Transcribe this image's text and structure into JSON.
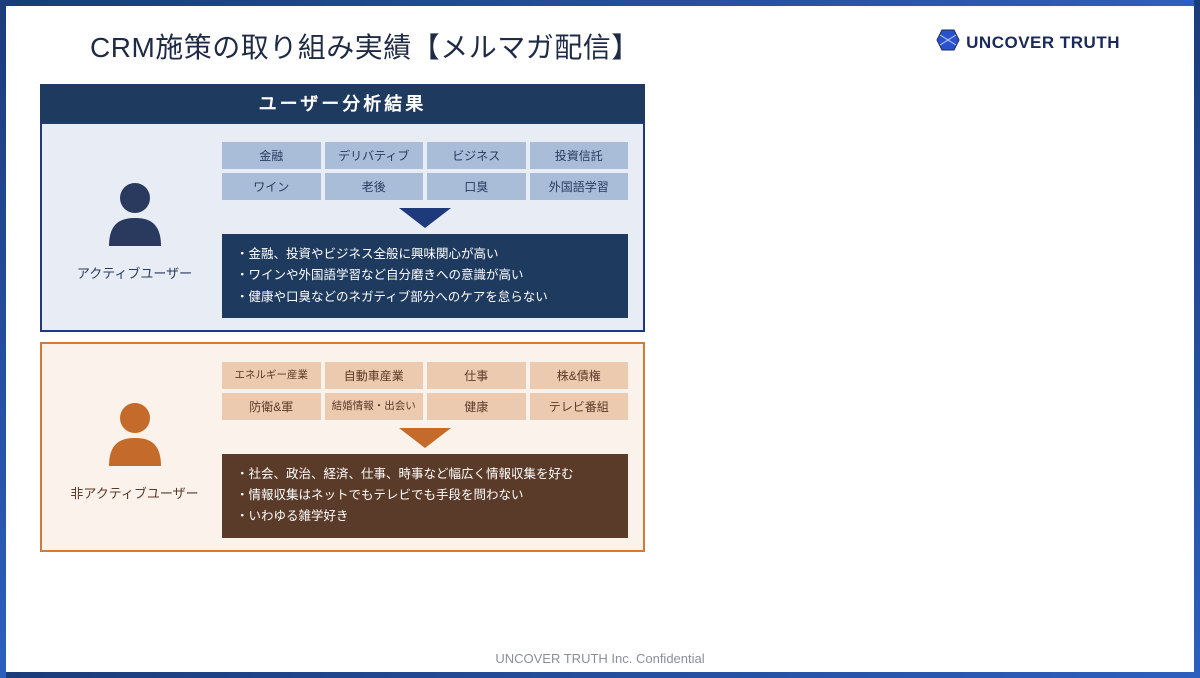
{
  "header": {
    "title": "CRM施策の取り組み実績【メルマガ配信】",
    "logo_text": "UNCOVER TRUTH"
  },
  "section_header": {
    "label": "ユーザー分析結果",
    "bg": "#1e3a5f",
    "fg": "#ffffff"
  },
  "colors": {
    "frame_start": "#1b3c7a",
    "frame_end": "#2d5fbf",
    "logo_blue": "#2952cc",
    "footer_text": "#8a8f9a"
  },
  "panels": [
    {
      "id": "active",
      "border_color": "#1e3a7b",
      "bg_color": "#e8edf5",
      "user_label": "アクティブユーザー",
      "user_label_color": "#2a3a5f",
      "icon_color": "#2a3a5f",
      "tag_bg": "#a9bdd9",
      "tag_fg": "#2a3a5f",
      "arrow_color": "#1e3a7b",
      "tags": [
        "金融",
        "デリバティブ",
        "ビジネス",
        "投資信託",
        "ワイン",
        "老後",
        "口臭",
        "外国語学習"
      ],
      "summary_bg": "#1e3a5f",
      "summary_lines": [
        "・金融、投資やビジネス全般に興味関心が高い",
        "・ワインや外国語学習など自分磨きへの意識が高い",
        "・健康や口臭などのネガティブ部分へのケアを怠らない"
      ]
    },
    {
      "id": "inactive",
      "border_color": "#d17a3a",
      "bg_color": "#fbf2eb",
      "user_label": "非アクティブユーザー",
      "user_label_color": "#5a3a28",
      "icon_color": "#c46a2a",
      "tag_bg": "#eccab0",
      "tag_fg": "#5a3a28",
      "arrow_color": "#c46a2a",
      "tags": [
        "エネルギー産業",
        "自動車産業",
        "仕事",
        "株&債権",
        "防衛&軍",
        "結婚情報・出会い",
        "健康",
        "テレビ番組"
      ],
      "summary_bg": "#5a3a28",
      "summary_lines": [
        "・社会、政治、経済、仕事、時事など幅広く情報収集を好む",
        "・情報収集はネットでもテレビでも手段を問わない",
        "・いわゆる雑学好き"
      ]
    }
  ],
  "footer": {
    "text": "UNCOVER TRUTH Inc. Confidential"
  }
}
